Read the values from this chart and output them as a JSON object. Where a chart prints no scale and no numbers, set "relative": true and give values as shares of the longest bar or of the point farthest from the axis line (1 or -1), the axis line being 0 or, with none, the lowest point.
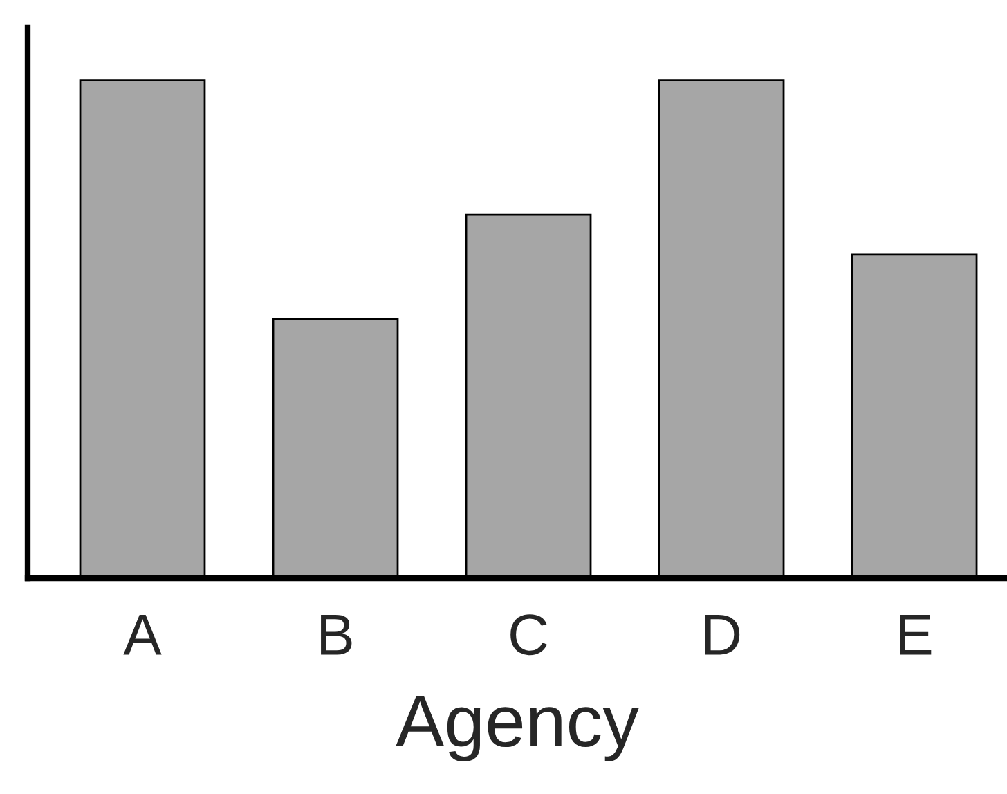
{
  "chart_data": {
    "type": "bar",
    "xlabel": "Agency",
    "categories": [
      "A",
      "B",
      "C",
      "D",
      "E"
    ],
    "relative": true,
    "values": [
      1,
      0.52,
      0.73,
      1,
      0.65
    ],
    "color": "#a6a6a6",
    "grid": false,
    "legend": false
  }
}
